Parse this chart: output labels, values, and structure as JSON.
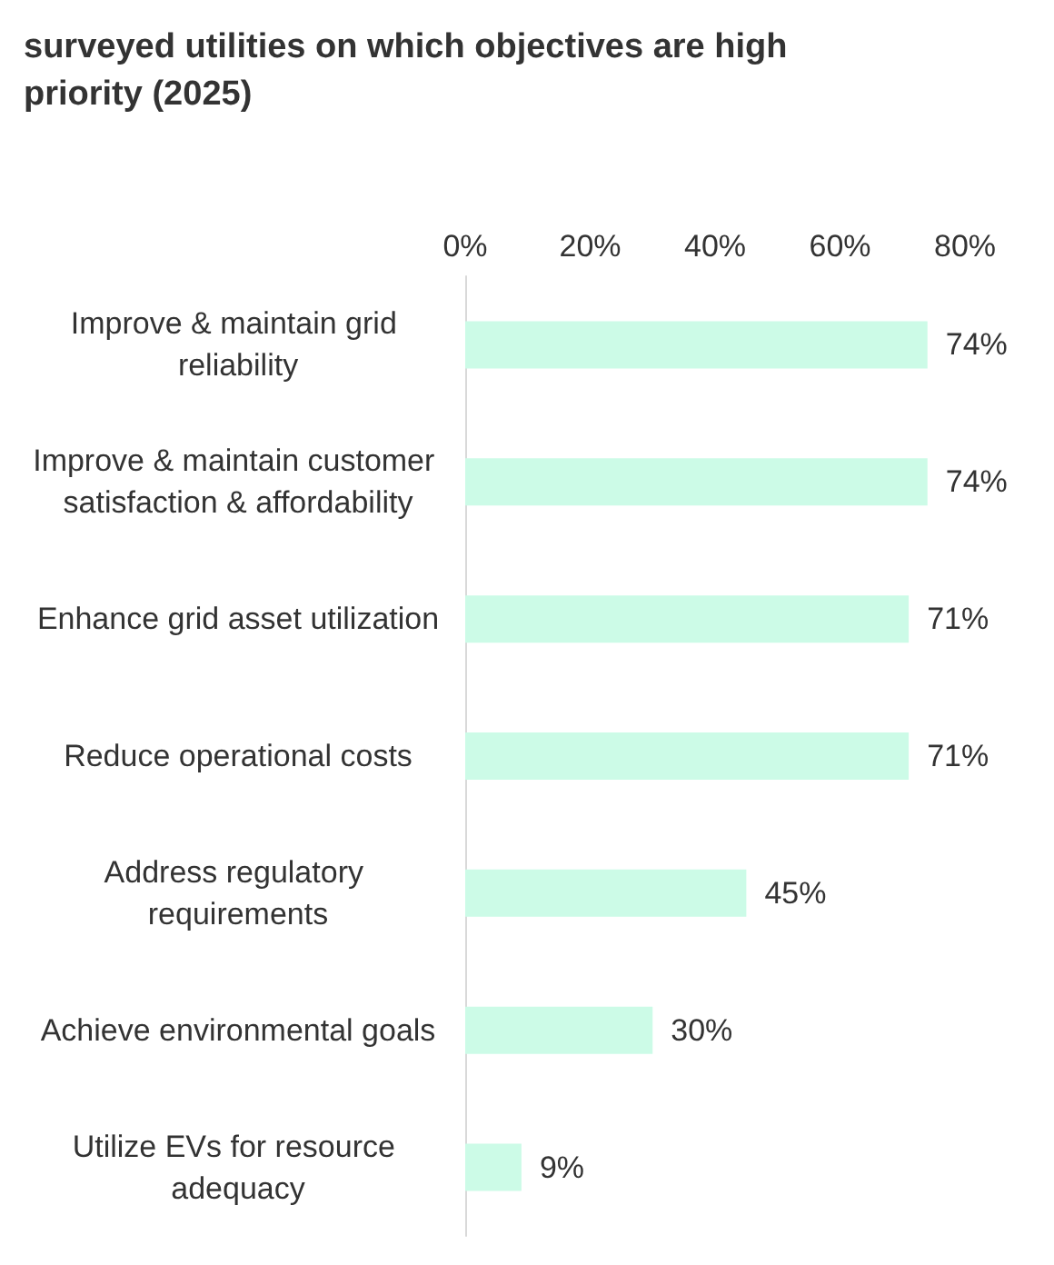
{
  "chart_data": {
    "type": "bar",
    "orientation": "horizontal",
    "title": "surveyed utilities on which objectives are high priority (2025)",
    "categories": [
      "Improve & maintain grid reliability",
      "Improve & maintain customer satisfaction & affordability",
      "Enhance grid asset utilization",
      "Reduce operational costs",
      "Address regulatory requirements",
      "Achieve environmental goals",
      "Utilize EVs for resource adequacy"
    ],
    "values": [
      74,
      74,
      71,
      71,
      45,
      30,
      9
    ],
    "value_labels": [
      "74%",
      "74%",
      "71%",
      "71%",
      "45%",
      "30%",
      "9%"
    ],
    "color": "#ccfbe7",
    "xlim": [
      0,
      80
    ],
    "xticks": [
      {
        "value": 0,
        "label": "0%"
      },
      {
        "value": 20,
        "label": "20%"
      },
      {
        "value": 40,
        "label": "40%"
      },
      {
        "value": 60,
        "label": "60%"
      },
      {
        "value": 80,
        "label": "80%"
      }
    ],
    "grid": false
  }
}
